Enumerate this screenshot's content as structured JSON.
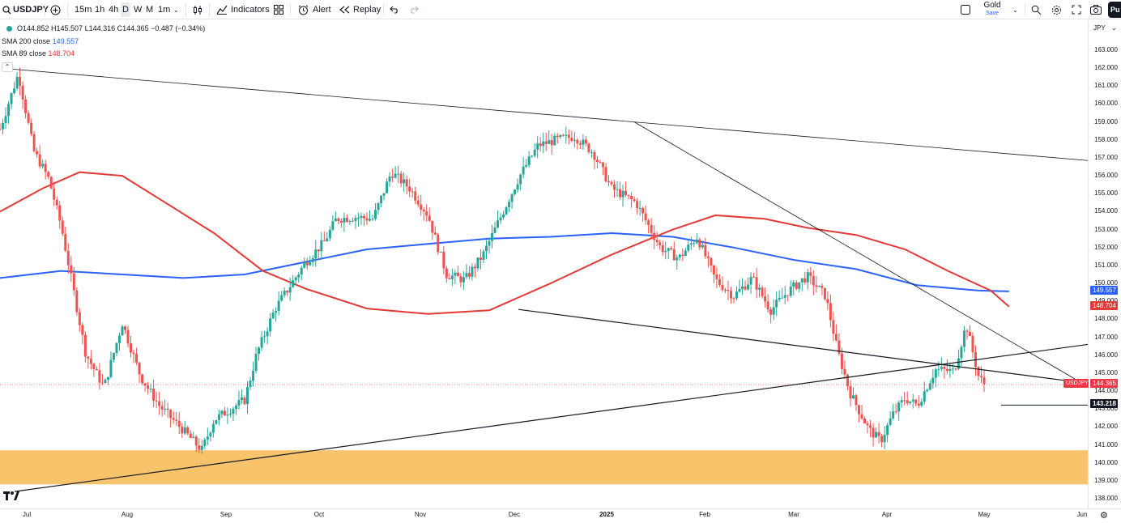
{
  "toolbar": {
    "symbol": "USDJPY",
    "add_symbol_icon": "plus-circle-icon",
    "timeframes": [
      "15m",
      "1h",
      "4h",
      "D",
      "W",
      "M",
      "1m"
    ],
    "active_timeframe": "D",
    "timeframe_dropdown_icon": "chevron-down-icon",
    "chart_type_icon": "candles-icon",
    "indicators_label": "Indicators",
    "layouts_icon": "grid-icon",
    "alert_label": "Alert",
    "replay_label": "Replay",
    "undo_icon": "undo-icon",
    "redo_icon": "redo-icon",
    "layout_toggle_icon": "square-icon",
    "layout_name": "Gold",
    "layout_save_label": "Save",
    "layout_dropdown_icon": "chevron-down-icon",
    "right_icons": [
      "quick-search-icon",
      "settings-icon",
      "fullscreen-icon",
      "camera-icon"
    ],
    "publish_label": "Pu"
  },
  "legend": {
    "ohlc": "O144.852 H145.507 L144.316 C144.365 −0.487 (−0.34%)",
    "sma200_label": "SMA 200 close",
    "sma200_value": "149.557",
    "sma89_label": "SMA 89 close",
    "sma89_value": "148.704",
    "collapse_glyph": "⌃"
  },
  "price_axis": {
    "currency": "JPY",
    "ticks": [
      "163.000",
      "162.000",
      "161.000",
      "160.000",
      "159.000",
      "158.000",
      "157.000",
      "156.000",
      "155.000",
      "154.000",
      "153.000",
      "152.000",
      "151.000",
      "150.000",
      "149.000",
      "148.000",
      "147.000",
      "146.000",
      "145.000",
      "144.000",
      "143.000",
      "142.000",
      "141.000",
      "140.000",
      "139.000",
      "138.000"
    ],
    "badge_sma200": "149.557",
    "badge_sma89": "148.704",
    "badge_last": "144.365",
    "badge_level": "143.218",
    "symbol_badge": "USDJPY"
  },
  "time_axis": {
    "labels": [
      "Jul",
      "Aug",
      "Sep",
      "Oct",
      "Nov",
      "Dec",
      "2025",
      "Feb",
      "Mar",
      "Apr",
      "May",
      "Jun"
    ]
  },
  "colors": {
    "up": "#26a69a",
    "down": "#ef5350",
    "sma200": "#2962ff",
    "sma89": "#e53935",
    "zone": "#f7c46c",
    "trendline": "#131722"
  },
  "chart_data": {
    "type": "candlestick",
    "symbol": "USDJPY",
    "timeframe": "D",
    "ylim": [
      138,
      163
    ],
    "y_ticks": [
      138,
      139,
      140,
      141,
      142,
      143,
      144,
      145,
      146,
      147,
      148,
      149,
      150,
      151,
      152,
      153,
      154,
      155,
      156,
      157,
      158,
      159,
      160,
      161,
      162,
      163
    ],
    "x_labels": [
      "Jul",
      "Aug",
      "Sep",
      "Oct",
      "Nov",
      "Dec",
      "2025",
      "Feb",
      "Mar",
      "Apr",
      "May",
      "Jun"
    ],
    "last": {
      "open": 144.852,
      "high": 145.507,
      "low": 144.316,
      "close": 144.365,
      "change": -0.487,
      "change_pct": -0.34
    },
    "close_path": [
      [
        0,
        158.6
      ],
      [
        0.3,
        161.7
      ],
      [
        0.55,
        157.4
      ],
      [
        0.8,
        155.8
      ],
      [
        1.0,
        153.2
      ],
      [
        1.4,
        146.1
      ],
      [
        1.7,
        144.2
      ],
      [
        2.0,
        147.8
      ],
      [
        2.3,
        144.8
      ],
      [
        2.6,
        143.2
      ],
      [
        3.0,
        141.8
      ],
      [
        3.3,
        140.7
      ],
      [
        3.5,
        142.4
      ],
      [
        4.0,
        143.5
      ],
      [
        4.2,
        146.1
      ],
      [
        4.5,
        148.6
      ],
      [
        5.0,
        151.2
      ],
      [
        5.3,
        152.3
      ],
      [
        5.5,
        153.6
      ],
      [
        5.8,
        153.7
      ],
      [
        6.1,
        153.6
      ],
      [
        6.4,
        156.2
      ],
      [
        6.7,
        155.3
      ],
      [
        7.0,
        153.8
      ],
      [
        7.3,
        150.5
      ],
      [
        7.6,
        150.2
      ],
      [
        7.9,
        151.6
      ],
      [
        8.2,
        153.8
      ],
      [
        8.5,
        156.0
      ],
      [
        8.8,
        157.7
      ],
      [
        9.1,
        158.0
      ],
      [
        9.4,
        158.2
      ],
      [
        9.7,
        157.3
      ],
      [
        10.0,
        155.3
      ],
      [
        10.4,
        154.5
      ],
      [
        10.8,
        152.0
      ],
      [
        11.1,
        151.4
      ],
      [
        11.4,
        152.6
      ],
      [
        11.7,
        150.2
      ],
      [
        12.0,
        149.3
      ],
      [
        12.3,
        150.3
      ],
      [
        12.6,
        148.5
      ],
      [
        12.9,
        149.6
      ],
      [
        13.2,
        150.4
      ],
      [
        13.5,
        149.3
      ],
      [
        13.7,
        146.2
      ],
      [
        13.9,
        143.9
      ],
      [
        14.2,
        141.9
      ],
      [
        14.4,
        141.2
      ],
      [
        14.6,
        142.7
      ],
      [
        14.8,
        143.6
      ],
      [
        15.0,
        143.2
      ],
      [
        15.3,
        145.2
      ],
      [
        15.6,
        145.1
      ],
      [
        15.8,
        147.7
      ],
      [
        16.0,
        144.85
      ],
      [
        16.1,
        144.365
      ]
    ],
    "lines": [
      {
        "name": "SMA 200 close",
        "value": 149.557
      },
      {
        "name": "SMA 89 close",
        "value": 148.704
      }
    ],
    "horizontal_level": 143.218,
    "support_zone": [
      138.8,
      140.7
    ],
    "sma200_path": [
      [
        0,
        150.3
      ],
      [
        1.0,
        150.7
      ],
      [
        2.0,
        150.5
      ],
      [
        3.0,
        150.3
      ],
      [
        4.0,
        150.5
      ],
      [
        5.0,
        151.2
      ],
      [
        6.0,
        151.9
      ],
      [
        7.0,
        152.2
      ],
      [
        8.0,
        152.5
      ],
      [
        9.0,
        152.6
      ],
      [
        10.0,
        152.8
      ],
      [
        11.0,
        152.6
      ],
      [
        12.0,
        152.0
      ],
      [
        13.0,
        151.3
      ],
      [
        14.0,
        150.8
      ],
      [
        15.0,
        149.9
      ],
      [
        16.0,
        149.6
      ],
      [
        16.5,
        149.557
      ]
    ],
    "sma89_path": [
      [
        0,
        154.0
      ],
      [
        0.7,
        155.3
      ],
      [
        1.3,
        156.2
      ],
      [
        2.0,
        156.0
      ],
      [
        2.8,
        154.3
      ],
      [
        3.5,
        152.8
      ],
      [
        4.3,
        150.7
      ],
      [
        5.0,
        149.7
      ],
      [
        6.0,
        148.6
      ],
      [
        7.0,
        148.3
      ],
      [
        8.0,
        148.5
      ],
      [
        9.0,
        150.0
      ],
      [
        10.0,
        151.6
      ],
      [
        11.0,
        153.0
      ],
      [
        11.7,
        153.8
      ],
      [
        12.5,
        153.6
      ],
      [
        13.2,
        153.1
      ],
      [
        14.0,
        152.7
      ],
      [
        14.8,
        151.9
      ],
      [
        15.5,
        150.7
      ],
      [
        16.2,
        149.6
      ],
      [
        16.5,
        148.704
      ]
    ]
  }
}
